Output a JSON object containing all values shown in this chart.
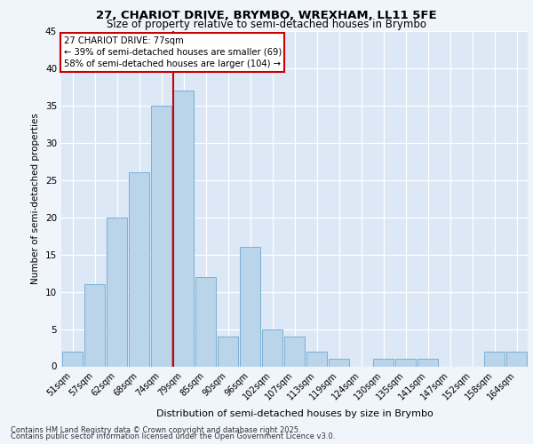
{
  "title1": "27, CHARIOT DRIVE, BRYMBO, WREXHAM, LL11 5FE",
  "title2": "Size of property relative to semi-detached houses in Brymbo",
  "xlabel": "Distribution of semi-detached houses by size in Brymbo",
  "ylabel": "Number of semi-detached properties",
  "categories": [
    "51sqm",
    "57sqm",
    "62sqm",
    "68sqm",
    "74sqm",
    "79sqm",
    "85sqm",
    "90sqm",
    "96sqm",
    "102sqm",
    "107sqm",
    "113sqm",
    "119sqm",
    "124sqm",
    "130sqm",
    "135sqm",
    "141sqm",
    "147sqm",
    "152sqm",
    "158sqm",
    "164sqm"
  ],
  "values": [
    2,
    11,
    20,
    26,
    35,
    37,
    12,
    4,
    16,
    5,
    4,
    2,
    1,
    0,
    1,
    1,
    1,
    0,
    0,
    2,
    2
  ],
  "bar_color": "#bad4ea",
  "bar_edge_color": "#7aafd4",
  "annotation_title": "27 CHARIOT DRIVE: 77sqm",
  "annotation_line1": "← 39% of semi-detached houses are smaller (69)",
  "annotation_line2": "58% of semi-detached houses are larger (104) →",
  "line_color": "#cc0000",
  "ylim": [
    0,
    45
  ],
  "yticks": [
    0,
    5,
    10,
    15,
    20,
    25,
    30,
    35,
    40,
    45
  ],
  "footer1": "Contains HM Land Registry data © Crown copyright and database right 2025.",
  "footer2": "Contains public sector information licensed under the Open Government Licence v3.0.",
  "bg_color": "#f0f4fb",
  "plot_bg_color": "#dce8f5"
}
